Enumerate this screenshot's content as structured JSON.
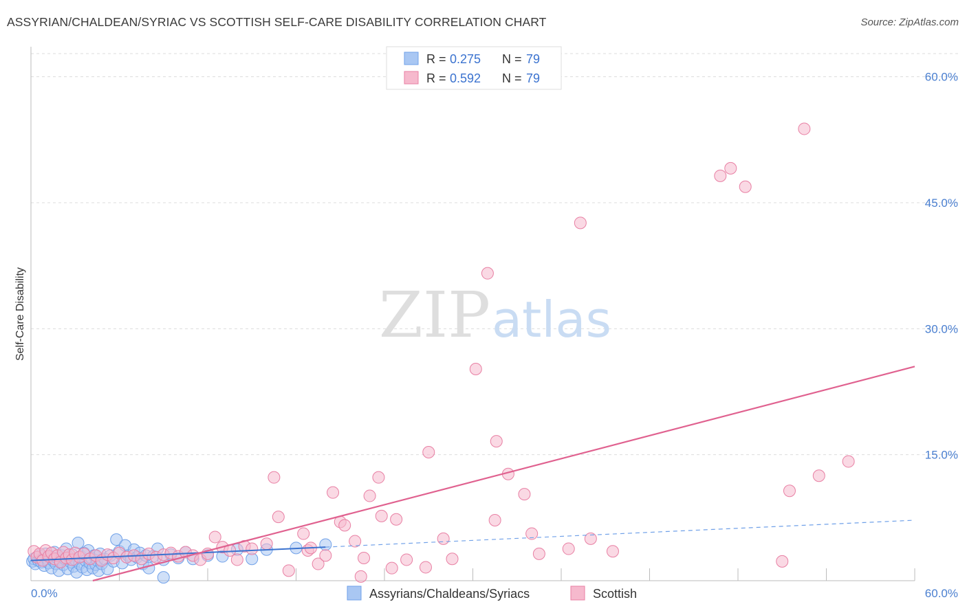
{
  "title": "ASSYRIAN/CHALDEAN/SYRIAC VS SCOTTISH SELF-CARE DISABILITY CORRELATION CHART",
  "source": "Source: ZipAtlas.com",
  "watermark": {
    "zip": "ZIP",
    "atlas": "atlas"
  },
  "chart_data": {
    "type": "scatter",
    "title": "ASSYRIAN/CHALDEAN/SYRIAC VS SCOTTISH SELF-CARE DISABILITY CORRELATION CHART",
    "xlabel": "",
    "ylabel": "Self-Care Disability",
    "xlim": [
      0,
      60
    ],
    "ylim": [
      0,
      63
    ],
    "x_tick_labels": [
      "0.0%",
      "60.0%"
    ],
    "y_ticks": [
      15,
      30,
      45,
      60
    ],
    "y_tick_labels": [
      "15.0%",
      "30.0%",
      "45.0%",
      "60.0%"
    ],
    "grid": true,
    "legend_position": "top-center",
    "series": [
      {
        "name": "Assyrians/Chaldeans/Syriacs",
        "color": "#6fa0e8",
        "fill": "#a9c7f3",
        "R": "0.275",
        "N": "79",
        "trend": {
          "x": [
            0,
            20
          ],
          "y": [
            2.4,
            4.0
          ],
          "dashed_extension": {
            "x": [
              20,
              60
            ],
            "y": [
              4.0,
              7.2
            ]
          }
        },
        "points": [
          [
            0.1,
            2.3
          ],
          [
            0.2,
            2.6
          ],
          [
            0.3,
            2.0
          ],
          [
            0.4,
            2.8
          ],
          [
            0.5,
            2.4
          ],
          [
            0.6,
            3.0
          ],
          [
            0.7,
            2.2
          ],
          [
            0.8,
            2.5
          ],
          [
            0.9,
            1.8
          ],
          [
            1.0,
            3.2
          ],
          [
            1.1,
            2.6
          ],
          [
            1.2,
            2.1
          ],
          [
            1.3,
            2.9
          ],
          [
            1.4,
            1.5
          ],
          [
            1.5,
            2.4
          ],
          [
            1.6,
            3.4
          ],
          [
            1.7,
            2.0
          ],
          [
            1.8,
            2.7
          ],
          [
            1.9,
            1.2
          ],
          [
            2.0,
            2.3
          ],
          [
            2.1,
            3.0
          ],
          [
            2.2,
            1.9
          ],
          [
            2.3,
            2.6
          ],
          [
            2.4,
            3.8
          ],
          [
            2.5,
            1.4
          ],
          [
            2.6,
            2.8
          ],
          [
            2.7,
            2.2
          ],
          [
            2.8,
            3.1
          ],
          [
            2.9,
            1.7
          ],
          [
            3.0,
            2.5
          ],
          [
            3.1,
            1.0
          ],
          [
            3.2,
            4.5
          ],
          [
            3.3,
            2.0
          ],
          [
            3.4,
            2.9
          ],
          [
            3.5,
            1.6
          ],
          [
            3.6,
            3.3
          ],
          [
            3.7,
            2.4
          ],
          [
            3.8,
            1.3
          ],
          [
            3.9,
            3.6
          ],
          [
            4.0,
            2.1
          ],
          [
            4.1,
            2.7
          ],
          [
            4.2,
            1.5
          ],
          [
            4.3,
            3.0
          ],
          [
            4.4,
            1.9
          ],
          [
            4.5,
            2.4
          ],
          [
            4.6,
            1.2
          ],
          [
            4.7,
            3.2
          ],
          [
            4.8,
            2.0
          ],
          [
            5.0,
            2.6
          ],
          [
            5.2,
            1.4
          ],
          [
            5.4,
            3.0
          ],
          [
            5.6,
            2.3
          ],
          [
            5.8,
            4.9
          ],
          [
            6.0,
            3.5
          ],
          [
            6.2,
            2.1
          ],
          [
            6.4,
            4.2
          ],
          [
            6.6,
            3.0
          ],
          [
            6.8,
            2.5
          ],
          [
            7.0,
            3.7
          ],
          [
            7.2,
            2.8
          ],
          [
            7.4,
            3.3
          ],
          [
            7.6,
            2.0
          ],
          [
            7.8,
            3.0
          ],
          [
            8.0,
            1.5
          ],
          [
            8.3,
            2.9
          ],
          [
            8.6,
            3.8
          ],
          [
            9.0,
            2.5
          ],
          [
            9.5,
            3.1
          ],
          [
            10.0,
            2.7
          ],
          [
            10.5,
            3.4
          ],
          [
            11.0,
            2.6
          ],
          [
            12.0,
            3.0
          ],
          [
            13.0,
            2.9
          ],
          [
            14.0,
            3.7
          ],
          [
            15.0,
            2.6
          ],
          [
            16.0,
            3.7
          ],
          [
            18.0,
            3.9
          ],
          [
            20.0,
            4.3
          ],
          [
            9.0,
            0.4
          ]
        ]
      },
      {
        "name": "Scottish",
        "color": "#e87fa3",
        "fill": "#f6b9cd",
        "R": "0.592",
        "N": "79",
        "trend": {
          "x": [
            4.2,
            60
          ],
          "y": [
            0,
            25.5
          ]
        },
        "points": [
          [
            0.2,
            3.5
          ],
          [
            0.4,
            2.8
          ],
          [
            0.6,
            3.2
          ],
          [
            0.8,
            2.4
          ],
          [
            1.0,
            3.6
          ],
          [
            1.2,
            2.9
          ],
          [
            1.4,
            3.3
          ],
          [
            1.6,
            2.6
          ],
          [
            1.8,
            3.0
          ],
          [
            2.0,
            2.2
          ],
          [
            2.2,
            3.4
          ],
          [
            2.4,
            2.7
          ],
          [
            2.6,
            3.1
          ],
          [
            2.8,
            2.5
          ],
          [
            3.0,
            3.3
          ],
          [
            3.3,
            2.8
          ],
          [
            3.6,
            3.2
          ],
          [
            4.0,
            2.6
          ],
          [
            4.4,
            3.0
          ],
          [
            4.8,
            2.4
          ],
          [
            5.2,
            3.1
          ],
          [
            5.6,
            2.7
          ],
          [
            6.0,
            3.3
          ],
          [
            6.5,
            2.8
          ],
          [
            7.0,
            3.0
          ],
          [
            7.5,
            2.6
          ],
          [
            8.0,
            3.2
          ],
          [
            8.5,
            2.8
          ],
          [
            9.0,
            3.1
          ],
          [
            9.5,
            3.3
          ],
          [
            10.0,
            2.9
          ],
          [
            10.5,
            3.4
          ],
          [
            11.0,
            3.0
          ],
          [
            11.5,
            2.5
          ],
          [
            12.0,
            3.2
          ],
          [
            12.5,
            5.2
          ],
          [
            13.0,
            4.0
          ],
          [
            13.5,
            3.6
          ],
          [
            14.0,
            2.5
          ],
          [
            14.5,
            4.1
          ],
          [
            15.0,
            3.8
          ],
          [
            16.0,
            4.4
          ],
          [
            16.5,
            12.3
          ],
          [
            16.8,
            7.6
          ],
          [
            17.5,
            1.2
          ],
          [
            18.5,
            5.6
          ],
          [
            18.8,
            3.6
          ],
          [
            19.0,
            3.9
          ],
          [
            19.5,
            2.0
          ],
          [
            20.0,
            3.0
          ],
          [
            20.5,
            10.5
          ],
          [
            21.0,
            7.0
          ],
          [
            21.3,
            6.6
          ],
          [
            22.0,
            4.7
          ],
          [
            22.4,
            0.5
          ],
          [
            22.6,
            2.7
          ],
          [
            23.0,
            10.1
          ],
          [
            23.6,
            12.3
          ],
          [
            23.8,
            7.7
          ],
          [
            24.5,
            1.5
          ],
          [
            24.8,
            7.3
          ],
          [
            25.5,
            2.5
          ],
          [
            26.8,
            1.6
          ],
          [
            27.0,
            15.3
          ],
          [
            28.0,
            5.0
          ],
          [
            28.6,
            2.6
          ],
          [
            30.2,
            25.2
          ],
          [
            31.0,
            36.6
          ],
          [
            31.5,
            7.2
          ],
          [
            31.6,
            16.6
          ],
          [
            32.4,
            12.7
          ],
          [
            33.5,
            10.3
          ],
          [
            34.0,
            5.6
          ],
          [
            34.5,
            3.2
          ],
          [
            36.5,
            3.8
          ],
          [
            37.3,
            42.6
          ],
          [
            38.0,
            5.0
          ],
          [
            39.5,
            3.5
          ],
          [
            46.8,
            48.2
          ]
        ],
        "extra_points": [
          [
            47.5,
            49.1
          ],
          [
            48.5,
            46.9
          ],
          [
            51.0,
            2.3
          ],
          [
            51.5,
            10.7
          ],
          [
            52.5,
            53.8
          ],
          [
            53.5,
            12.5
          ],
          [
            55.5,
            14.2
          ]
        ]
      }
    ]
  },
  "legend": {
    "rows": [
      {
        "r_label": "R =",
        "r_value": "0.275",
        "n_label": "N =",
        "n_value": "79"
      },
      {
        "r_label": "R =",
        "r_value": "0.592",
        "n_label": "N =",
        "n_value": "79"
      }
    ]
  },
  "bottom_legend": [
    "Assyrians/Chaldeans/Syriacs",
    "Scottish"
  ]
}
